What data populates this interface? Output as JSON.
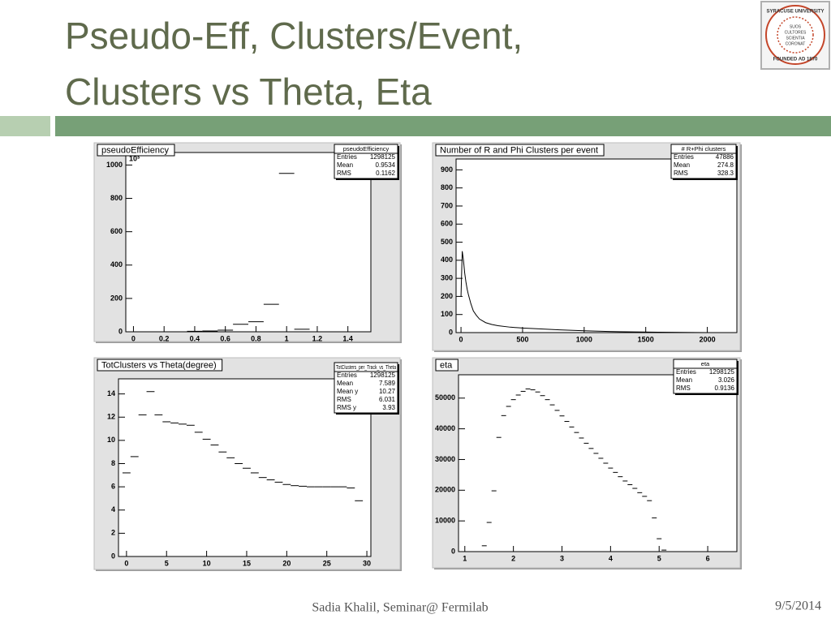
{
  "slide": {
    "title_lines": [
      "Pseudo-Eff, Clusters/Event,",
      "Clusters vs Theta, Eta"
    ],
    "logo": {
      "top_text": "SYRACUSE UNIVERSITY",
      "bottom_text": "FOUNDED AD 1870",
      "motto": [
        "SUOS",
        "CULTORES",
        "SCIENTIA",
        "CORONAT"
      ]
    },
    "footer": {
      "presenter": "Sadia Khalil, Seminar@ Fermilab",
      "date": "9/5/2014"
    }
  },
  "chart_data": [
    {
      "type": "histogram",
      "title": "pseudoEfficiency",
      "y_exponent": "10³",
      "color": "#000000",
      "bins": [
        0.35,
        0.45,
        0.55,
        0.65,
        0.75,
        0.85,
        0.95,
        1.05,
        1.15
      ],
      "values": [
        3,
        5,
        10,
        45,
        60,
        165,
        950,
        15
      ],
      "xlim": [
        -0.05,
        1.55
      ],
      "xticks": [
        0,
        0.2,
        0.4,
        0.6,
        0.8,
        1,
        1.2,
        1.4
      ],
      "ylim": [
        0,
        1075
      ],
      "yticks": [
        0,
        200,
        400,
        600,
        800,
        1000
      ],
      "stats": {
        "title": "pseudoEfficiency",
        "rows": [
          {
            "label": "Entries",
            "value": 1298125
          },
          {
            "label": "Mean",
            "value": 0.9534
          },
          {
            "label": "RMS",
            "value": 0.1162
          }
        ]
      }
    },
    {
      "type": "line",
      "title": "Number of R and Phi Clusters per event",
      "color": "#000000",
      "x": [
        0,
        10,
        20,
        30,
        40,
        50,
        60,
        80,
        100,
        125,
        150,
        200,
        250,
        300,
        400,
        500,
        600,
        800,
        1000,
        1200,
        1400,
        1600,
        1800,
        2000
      ],
      "values": [
        200,
        450,
        400,
        330,
        280,
        240,
        210,
        160,
        120,
        95,
        75,
        55,
        45,
        38,
        30,
        25,
        22,
        15,
        10,
        6,
        4,
        2,
        1,
        0
      ],
      "xlim": [
        -40,
        2240
      ],
      "xticks": [
        0,
        500,
        1000,
        1500,
        2000
      ],
      "ylim": [
        0,
        960
      ],
      "yticks": [
        0,
        100,
        200,
        300,
        400,
        500,
        600,
        700,
        800,
        900
      ],
      "stats": {
        "title": "# R+Phi clusters",
        "rows": [
          {
            "label": "Entries",
            "value": 47886
          },
          {
            "label": "Mean",
            "value": 274.8
          },
          {
            "label": "RMS",
            "value": 328.3
          }
        ]
      }
    },
    {
      "type": "scatter",
      "title": "TotClusters vs Theta(degree)",
      "color": "#000000",
      "x": [
        0,
        1,
        2,
        3,
        4,
        5,
        6,
        7,
        8,
        9,
        10,
        11,
        12,
        13,
        14,
        15,
        16,
        17,
        18,
        19,
        20,
        21,
        22,
        23,
        24,
        25,
        26,
        27,
        28,
        29
      ],
      "values": [
        7.2,
        8.6,
        12.2,
        14.2,
        12.2,
        11.6,
        11.5,
        11.4,
        11.3,
        10.7,
        10.1,
        9.6,
        9.0,
        8.5,
        8.0,
        7.6,
        7.2,
        6.8,
        6.6,
        6.4,
        6.2,
        6.1,
        6.05,
        6.0,
        6.0,
        6.0,
        6.0,
        6.0,
        5.9,
        4.8
      ],
      "xlim": [
        -1,
        30.5
      ],
      "xticks": [
        0,
        5,
        10,
        15,
        20,
        25,
        30
      ],
      "ylim": [
        0,
        15.3
      ],
      "yticks": [
        0,
        2,
        4,
        6,
        8,
        10,
        12,
        14
      ],
      "stats": {
        "title": "TotClusters_per_Track_vs_Theta",
        "rows": [
          {
            "label": "Entries",
            "value": 1298125
          },
          {
            "label": "Mean",
            "value": 7.589
          },
          {
            "label": "Mean y",
            "value": 10.27
          },
          {
            "label": "RMS",
            "value": 6.031
          },
          {
            "label": "RMS y",
            "value": 3.93
          }
        ]
      }
    },
    {
      "type": "scatter",
      "title": "eta",
      "color": "#000000",
      "x": [
        1.4,
        1.5,
        1.6,
        1.7,
        1.8,
        1.9,
        2.0,
        2.1,
        2.2,
        2.3,
        2.4,
        2.5,
        2.6,
        2.7,
        2.8,
        2.9,
        3.0,
        3.1,
        3.2,
        3.3,
        3.4,
        3.5,
        3.6,
        3.7,
        3.8,
        3.9,
        4.0,
        4.1,
        4.2,
        4.3,
        4.4,
        4.5,
        4.6,
        4.7,
        4.8,
        4.9,
        5.0,
        5.1
      ],
      "values": [
        1900,
        9500,
        19800,
        37200,
        44300,
        47300,
        49500,
        51000,
        52200,
        53000,
        52700,
        52000,
        50800,
        49500,
        47800,
        46000,
        44200,
        42400,
        40600,
        38800,
        37000,
        35300,
        33600,
        32000,
        30400,
        28800,
        27200,
        25800,
        24400,
        23000,
        21800,
        20600,
        19200,
        18000,
        16600,
        11000,
        4200,
        500
      ],
      "xlim": [
        0.87,
        6.6
      ],
      "xticks": [
        1,
        2,
        3,
        4,
        5,
        6
      ],
      "ylim": [
        0,
        57600
      ],
      "yticks": [
        0,
        10000,
        20000,
        30000,
        40000,
        50000
      ],
      "stats": {
        "title": "eta",
        "rows": [
          {
            "label": "Entries",
            "value": 1298125
          },
          {
            "label": "Mean",
            "value": 3.026
          },
          {
            "label": "RMS",
            "value": 0.9136
          }
        ]
      }
    }
  ]
}
